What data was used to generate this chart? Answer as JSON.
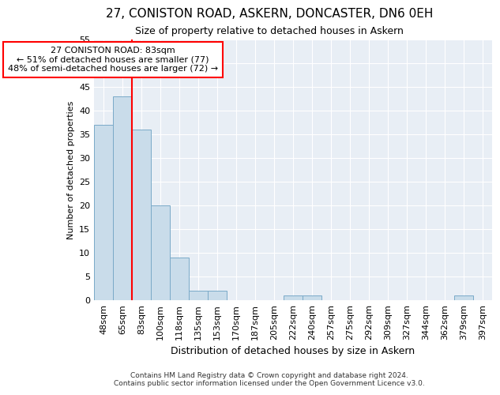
{
  "title": "27, CONISTON ROAD, ASKERN, DONCASTER, DN6 0EH",
  "subtitle": "Size of property relative to detached houses in Askern",
  "xlabel": "Distribution of detached houses by size in Askern",
  "ylabel": "Number of detached properties",
  "bar_labels": [
    "48sqm",
    "65sqm",
    "83sqm",
    "100sqm",
    "118sqm",
    "135sqm",
    "153sqm",
    "170sqm",
    "187sqm",
    "205sqm",
    "222sqm",
    "240sqm",
    "257sqm",
    "275sqm",
    "292sqm",
    "309sqm",
    "327sqm",
    "344sqm",
    "362sqm",
    "379sqm",
    "397sqm"
  ],
  "bar_values": [
    37,
    43,
    36,
    20,
    9,
    2,
    2,
    0,
    0,
    0,
    1,
    1,
    0,
    0,
    0,
    0,
    0,
    0,
    0,
    1,
    0
  ],
  "bar_color": "#c9dcea",
  "bar_edge_color": "#7aaac8",
  "red_line_index": 2,
  "annotation_text": "27 CONISTON ROAD: 83sqm\n← 51% of detached houses are smaller (77)\n48% of semi-detached houses are larger (72) →",
  "annotation_box_facecolor": "white",
  "annotation_box_edgecolor": "red",
  "ylim": [
    0,
    55
  ],
  "yticks": [
    0,
    5,
    10,
    15,
    20,
    25,
    30,
    35,
    40,
    45,
    50,
    55
  ],
  "bg_color": "#e8eef5",
  "grid_color": "white",
  "footer": "Contains HM Land Registry data © Crown copyright and database right 2024.\nContains public sector information licensed under the Open Government Licence v3.0.",
  "property_line_color": "red",
  "title_fontsize": 11,
  "subtitle_fontsize": 9,
  "xlabel_fontsize": 9,
  "ylabel_fontsize": 8,
  "tick_fontsize": 8,
  "footer_fontsize": 6.5,
  "annot_fontsize": 8
}
